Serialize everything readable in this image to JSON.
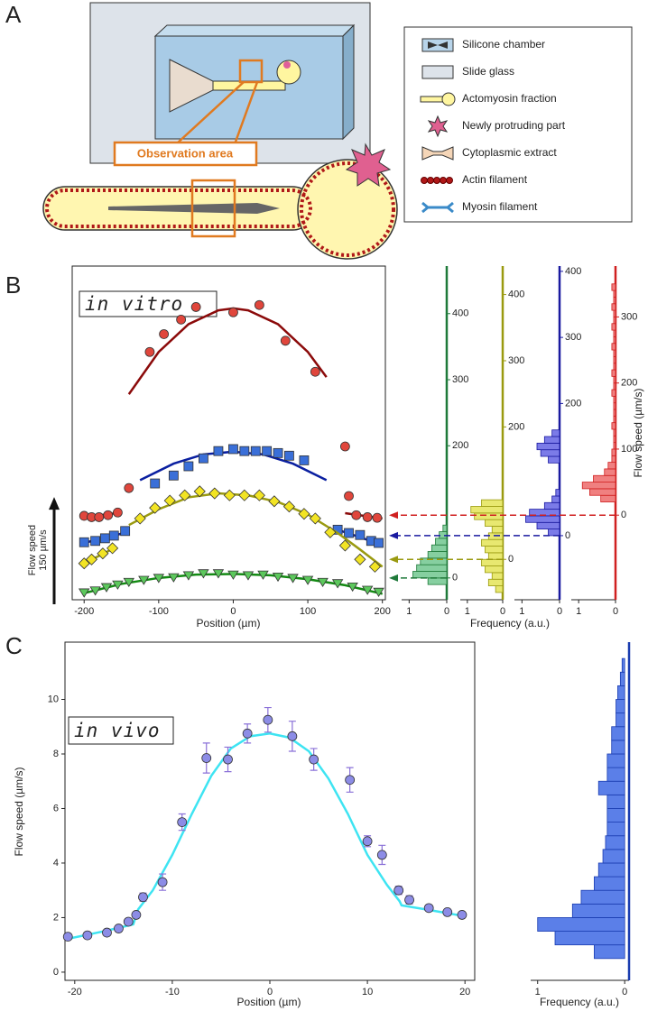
{
  "diagram": {
    "panel_label": "A",
    "callout": "Observation area",
    "legend": [
      "Silicone chamber",
      "Slide glass",
      "Actomyosin fraction",
      "Newly protruding part",
      "Cytoplasmic extract",
      "Actin filament",
      "Myosin filament"
    ]
  },
  "chart_data": [
    {
      "type": "scatter",
      "panel_label": "B",
      "annotation": "in vitro",
      "xlabel": "Position (µm)",
      "xlim": [
        -216,
        204
      ],
      "xticks": [
        -200,
        -100,
        0,
        100,
        200
      ],
      "ylim": [
        0,
        505
      ],
      "scale_bar": {
        "value": 150,
        "label": [
          "Flow speed",
          "150 µm/s"
        ]
      },
      "series": [
        {
          "color": "#e0463c",
          "line_color": "#8b0a0a",
          "marker": "circle",
          "x": [
            -200,
            -190,
            -180,
            -168,
            -155,
            -140,
            -112,
            -93,
            -70,
            -50,
            0,
            35,
            70,
            110,
            150,
            155,
            165,
            180,
            193
          ],
          "values": [
            127,
            125,
            125,
            128,
            132,
            169,
            375,
            402,
            424,
            443,
            435,
            446,
            392,
            345,
            232,
            157,
            128,
            125,
            124
          ],
          "fits": [
            {
              "x": [
                -200,
                -150
              ],
              "values": [
                125,
                132
              ]
            },
            {
              "x": [
                -140,
                -100,
                -60,
                -20,
                0,
                20,
                60,
                100,
                125
              ],
              "values": [
                311,
                375,
                417,
                438,
                441,
                438,
                417,
                375,
                337
              ]
            },
            {
              "x": [
                150,
                200
              ],
              "values": [
                131,
                123
              ]
            }
          ]
        },
        {
          "color": "#3a6fd8",
          "line_color": "#0a1fa0",
          "marker": "square",
          "x": [
            -200,
            -185,
            -172,
            -160,
            -145,
            -105,
            -80,
            -60,
            -40,
            -20,
            0,
            15,
            30,
            45,
            60,
            75,
            95,
            140,
            155,
            170,
            185,
            195
          ],
          "values": [
            87,
            89,
            93,
            97,
            104,
            176,
            188,
            202,
            214,
            225,
            228,
            225,
            225,
            225,
            222,
            218,
            211,
            106,
            101,
            98,
            89,
            86
          ],
          "fits": [
            {
              "x": [
                -200,
                -150
              ],
              "values": [
                86,
                100
              ]
            },
            {
              "x": [
                -125,
                -80,
                -40,
                0,
                40,
                80,
                125
              ],
              "values": [
                181,
                206,
                220,
                224,
                220,
                206,
                181
              ]
            },
            {
              "x": [
                140,
                200
              ],
              "values": [
                106,
                83
              ]
            }
          ]
        },
        {
          "color": "#f2e424",
          "line_color": "#9a9a10",
          "marker": "diamond",
          "x": [
            -200,
            -190,
            -175,
            -162,
            -125,
            -105,
            -85,
            -65,
            -45,
            -25,
            -5,
            15,
            35,
            55,
            75,
            95,
            110,
            130,
            150,
            170,
            190
          ],
          "values": [
            55,
            61,
            70,
            78,
            123,
            139,
            150,
            158,
            164,
            161,
            158,
            158,
            158,
            149,
            141,
            130,
            123,
            102,
            82,
            61,
            50
          ],
          "fits": [
            {
              "x": [
                -200,
                -160
              ],
              "values": [
                55,
                78
              ]
            },
            {
              "x": [
                -140,
                -100,
                -60,
                -20,
                20,
                60,
                100,
                140,
                170,
                200
              ],
              "values": [
                113,
                137,
                155,
                161,
                158,
                148,
                129,
                101,
                76,
                50
              ]
            }
          ]
        },
        {
          "color": "#5cc85c",
          "line_color": "#138a13",
          "marker": "triangle-down",
          "x": [
            -200,
            -185,
            -170,
            -155,
            -140,
            -120,
            -100,
            -80,
            -60,
            -40,
            -20,
            0,
            20,
            40,
            60,
            80,
            100,
            120,
            140,
            160,
            180,
            195
          ],
          "values": [
            11,
            14,
            19,
            23,
            27,
            30,
            33,
            34,
            37,
            40,
            40,
            38,
            37,
            38,
            35,
            33,
            30,
            27,
            25,
            20,
            15,
            12
          ],
          "fits": [
            {
              "x": [
                -200,
                -150,
                -100,
                -50,
                0,
                50,
                100,
                150,
                200
              ],
              "values": [
                10,
                24,
                33,
                38,
                39,
                37,
                31,
                22,
                9
              ]
            }
          ]
        }
      ]
    },
    {
      "type": "histogram",
      "color": "#86cfa0",
      "line_color": "#1f7a3a",
      "ylim": [
        -33,
        472
      ],
      "yticks": [
        0,
        200,
        300,
        400
      ],
      "xlim": [
        1.2,
        0
      ],
      "xticks": [
        1,
        0
      ],
      "bins": [
        -10,
        0,
        10,
        20,
        30,
        40,
        50,
        60,
        70,
        80
      ],
      "values": [
        0.5,
        0.9,
        0.8,
        0.7,
        0.5,
        0.4,
        0.3,
        0.2,
        0.1
      ]
    },
    {
      "type": "histogram",
      "xlabel": "Frequency (a.u.)",
      "color": "#e8e870",
      "line_color": "#9a9a10",
      "ylim": [
        -61,
        443
      ],
      "yticks": [
        0,
        200,
        300,
        400
      ],
      "xlim": [
        1.2,
        0
      ],
      "xticks": [
        1,
        0
      ],
      "bins": [
        -50,
        -40,
        -30,
        -20,
        -10,
        0,
        10,
        20,
        30,
        40,
        50,
        60,
        70,
        80,
        90
      ],
      "values": [
        0.2,
        0.4,
        0.3,
        0.5,
        0.6,
        0.4,
        0.5,
        0.6,
        0.4,
        0.3,
        0.5,
        0.8,
        0.9,
        0.6
      ]
    },
    {
      "type": "histogram",
      "color": "#7b7be8",
      "line_color": "#1a1aa0",
      "ylim": [
        -97,
        408
      ],
      "yticks": [
        0,
        200,
        300,
        400
      ],
      "xlim": [
        1.2,
        0
      ],
      "xticks": [
        1,
        0
      ],
      "bins": [
        0,
        10,
        20,
        30,
        40,
        50,
        60,
        70,
        80,
        90,
        100,
        110,
        120,
        130,
        140,
        150,
        160
      ],
      "values": [
        0.3,
        0.6,
        0.9,
        0.8,
        0.4,
        0.2,
        0.1,
        0,
        0,
        0,
        0,
        0.3,
        0.5,
        0.6,
        0.4,
        0.2
      ]
    },
    {
      "type": "histogram",
      "ylabel": "Flow speed (µm/s)",
      "color": "#f08080",
      "line_color": "#d02020",
      "ylim": [
        -128,
        377
      ],
      "yticks": [
        0,
        100,
        200,
        300
      ],
      "xlim": [
        1.2,
        0
      ],
      "xticks": [
        1,
        0
      ],
      "bins": [
        0,
        10,
        20,
        30,
        40,
        50,
        60,
        70,
        80,
        90,
        100,
        110,
        120,
        130,
        140,
        150,
        160,
        170,
        180,
        190,
        200,
        210,
        220,
        230,
        240,
        250,
        260,
        270,
        280,
        290,
        300,
        310,
        320,
        330,
        340,
        350
      ],
      "values": [
        0,
        0,
        0.4,
        0.7,
        0.9,
        0.6,
        0.3,
        0.2,
        0.1,
        0.1,
        0.05,
        0.05,
        0.05,
        0.1,
        0.05,
        0.05,
        0.05,
        0.05,
        0.1,
        0.05,
        0.05,
        0.1,
        0.05,
        0.05,
        0.05,
        0.1,
        0.05,
        0.05,
        0.1,
        0.05,
        0.05,
        0.1,
        0.05,
        0.05,
        0.1
      ]
    },
    {
      "type": "scatter",
      "panel_label": "C",
      "annotation": "in vivo",
      "xlabel": "Position (µm)",
      "ylabel": "Flow speed (µm/s)",
      "xlim": [
        -21,
        21
      ],
      "xticks": [
        -20,
        -10,
        0,
        10,
        20
      ],
      "ylim": [
        -0.3,
        12.1
      ],
      "yticks": [
        0,
        2,
        4,
        6,
        8,
        10
      ],
      "series": [
        {
          "color": "#8c8ce6",
          "line_color": "#3ee4f2",
          "error_color": "#8a70d8",
          "marker": "circle",
          "x": [
            -20.7,
            -18.7,
            -16.7,
            -15.5,
            -14.5,
            -13.7,
            -13,
            -11,
            -9,
            -6.5,
            -4.3,
            -2.3,
            -0.2,
            2.3,
            4.5,
            8.2,
            10,
            11.5,
            13.2,
            14.3,
            16.3,
            18.2,
            19.7
          ],
          "values": [
            1.3,
            1.35,
            1.45,
            1.6,
            1.85,
            2.1,
            2.75,
            3.3,
            5.5,
            7.85,
            7.8,
            8.75,
            9.25,
            8.65,
            7.8,
            7.05,
            4.8,
            4.3,
            3.0,
            2.65,
            2.35,
            2.2,
            2.1
          ],
          "errors": [
            0.05,
            0.1,
            0.1,
            0.1,
            0.1,
            0.1,
            0.15,
            0.3,
            0.3,
            0.55,
            0.45,
            0.35,
            0.45,
            0.55,
            0.4,
            0.45,
            0.2,
            0.35,
            0.15,
            0.15,
            0.1,
            0.1,
            0.1
          ],
          "fits": [
            {
              "x": [
                -21,
                -17,
                -14,
                -13.5,
                -12,
                -10,
                -8,
                -6,
                -4,
                -2,
                0,
                2,
                4,
                6,
                8,
                10,
                12,
                13.3,
                13.5,
                16,
                20
              ],
              "values": [
                1.2,
                1.5,
                1.75,
                2.3,
                3.0,
                4.3,
                5.8,
                7.2,
                8.2,
                8.65,
                8.75,
                8.6,
                8.1,
                7.1,
                5.8,
                4.3,
                3.2,
                2.6,
                2.45,
                2.3,
                2.05
              ]
            }
          ]
        }
      ]
    },
    {
      "type": "histogram",
      "xlabel": "Frequency (a.u.)",
      "color": "#5b7fe8",
      "line_color": "#1a3cb0",
      "ylim": [
        -0.3,
        12.1
      ],
      "xlim": [
        1.08,
        -0.05
      ],
      "xticks": [
        1,
        0
      ],
      "bins": [
        0.5,
        1,
        1.5,
        2,
        2.5,
        3,
        3.5,
        4,
        4.5,
        5,
        5.5,
        6,
        6.5,
        7,
        7.5,
        8,
        8.5,
        9,
        9.5,
        10,
        10.5,
        11,
        11.5
      ],
      "values": [
        0.35,
        0.8,
        1.0,
        0.6,
        0.5,
        0.35,
        0.3,
        0.25,
        0.22,
        0.2,
        0.2,
        0.2,
        0.3,
        0.2,
        0.2,
        0.15,
        0.15,
        0.1,
        0.1,
        0.08,
        0.05,
        0.03
      ]
    }
  ]
}
